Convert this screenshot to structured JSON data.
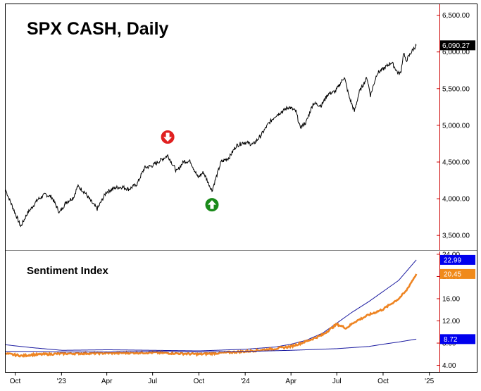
{
  "chart_data": [
    {
      "type": "line",
      "title": "SPX CASH, Daily",
      "y_axis_ticks": [
        "6,500.00",
        "6,000.00",
        "5,500.00",
        "5,000.00",
        "4,500.00",
        "4,000.00",
        "3,500.00"
      ],
      "ylim": [
        3300,
        6650
      ],
      "last_value_label": "6,090.27",
      "colors": {
        "line": "#000000",
        "axis": "#cc0000",
        "badge_bg": "#000000",
        "badge_text": "#ffffff"
      },
      "markers": [
        {
          "type": "sell",
          "icon": "arrow-down-icon",
          "color": "#e02020",
          "date": "2023-07-31",
          "value": 4620
        },
        {
          "type": "buy",
          "icon": "arrow-up-icon",
          "color": "#1a8a1a",
          "date": "2023-10-27",
          "value": 4110
        }
      ],
      "series": [
        {
          "x": [
            "2022-09-12",
            "2022-09-22",
            "2022-09-30",
            "2022-10-12",
            "2022-10-25",
            "2022-11-01",
            "2022-11-15",
            "2022-11-30",
            "2022-12-13",
            "2022-12-28",
            "2023-01-10",
            "2023-01-25",
            "2023-02-02",
            "2023-02-16",
            "2023-03-01",
            "2023-03-13",
            "2023-03-31",
            "2023-04-18",
            "2023-05-01",
            "2023-05-15",
            "2023-05-31",
            "2023-06-15",
            "2023-06-30",
            "2023-07-14",
            "2023-07-31",
            "2023-08-18",
            "2023-09-01",
            "2023-09-14",
            "2023-09-29",
            "2023-10-10",
            "2023-10-27",
            "2023-11-14",
            "2023-11-30",
            "2023-12-14",
            "2023-12-29",
            "2024-01-17",
            "2024-01-31",
            "2024-02-15",
            "2024-03-01",
            "2024-03-28",
            "2024-04-11",
            "2024-04-19",
            "2024-05-01",
            "2024-05-15",
            "2024-05-31",
            "2024-06-14",
            "2024-06-28",
            "2024-07-16",
            "2024-07-25",
            "2024-08-05",
            "2024-08-15",
            "2024-08-30",
            "2024-09-06",
            "2024-09-19",
            "2024-09-30",
            "2024-10-18",
            "2024-10-31",
            "2024-11-05",
            "2024-11-11",
            "2024-11-15",
            "2024-11-29",
            "2024-12-06"
          ],
          "y": [
            4120,
            3950,
            3820,
            3620,
            3800,
            3860,
            3990,
            4060,
            4020,
            3810,
            3950,
            4020,
            4170,
            4090,
            3960,
            3860,
            4090,
            4150,
            4160,
            4130,
            4200,
            4420,
            4450,
            4510,
            4590,
            4370,
            4510,
            4510,
            4290,
            4360,
            4110,
            4500,
            4560,
            4720,
            4770,
            4740,
            4850,
            5010,
            5130,
            5250,
            5190,
            4970,
            5040,
            5300,
            5270,
            5430,
            5460,
            5660,
            5400,
            5190,
            5460,
            5650,
            5410,
            5710,
            5760,
            5860,
            5710,
            5710,
            6000,
            5870,
            6030,
            6090
          ]
        }
      ]
    },
    {
      "type": "line",
      "title": "Sentiment Index",
      "y_axis_ticks": [
        "24.00",
        "20.00",
        "16.00",
        "12.00",
        "8.00",
        "4.00"
      ],
      "ylim": [
        2.8,
        24.5
      ],
      "x_tick_labels": [
        "Oct",
        "'23",
        "Apr",
        "Jul",
        "Oct",
        "'24",
        "Apr",
        "Jul",
        "Oct",
        "'25"
      ],
      "x_tick_dates": [
        "2022-10-01",
        "2023-01-01",
        "2023-04-01",
        "2023-07-01",
        "2023-10-01",
        "2024-01-01",
        "2024-04-01",
        "2024-07-01",
        "2024-10-01",
        "2025-01-01"
      ],
      "value_labels": [
        {
          "text": "22.99",
          "value": 22.99,
          "color": "#0000ee"
        },
        {
          "text": "20.45",
          "value": 20.45,
          "color": "#f08a1a"
        },
        {
          "text": "8.72",
          "value": 8.72,
          "color": "#0000ee"
        }
      ],
      "series": [
        {
          "color": "#1a1aa0",
          "x": [
            "2022-09-12",
            "2022-11-01",
            "2023-01-02",
            "2023-04-03",
            "2023-07-03",
            "2023-10-02",
            "2024-01-02",
            "2024-03-01",
            "2024-04-01",
            "2024-05-01",
            "2024-06-03",
            "2024-07-01",
            "2024-08-01",
            "2024-09-03",
            "2024-10-01",
            "2024-11-01",
            "2024-12-06"
          ],
          "y": [
            7.7,
            7.2,
            6.7,
            6.8,
            6.7,
            6.6,
            6.9,
            7.3,
            7.8,
            8.5,
            9.8,
            11.6,
            13.6,
            15.5,
            17.3,
            19.3,
            22.99
          ]
        },
        {
          "color": "#ee8422",
          "x": [
            "2022-09-12",
            "2022-10-15",
            "2022-11-01",
            "2023-01-02",
            "2023-04-03",
            "2023-07-03",
            "2023-10-02",
            "2024-01-02",
            "2024-03-01",
            "2024-04-01",
            "2024-05-01",
            "2024-06-03",
            "2024-07-01",
            "2024-07-20",
            "2024-08-05",
            "2024-09-03",
            "2024-10-01",
            "2024-11-01",
            "2024-11-15",
            "2024-12-06"
          ],
          "y": [
            6.1,
            5.7,
            5.9,
            6.1,
            6.2,
            6.3,
            6.0,
            6.5,
            7.0,
            7.4,
            8.3,
            9.5,
            11.4,
            10.7,
            11.8,
            13.1,
            14.1,
            16.0,
            17.3,
            20.45
          ]
        },
        {
          "color": "#1a1aa0",
          "x": [
            "2022-09-12",
            "2022-11-01",
            "2023-01-02",
            "2023-04-03",
            "2023-07-03",
            "2023-10-02",
            "2024-01-02",
            "2024-04-01",
            "2024-07-01",
            "2024-09-03",
            "2024-10-01",
            "2024-11-01",
            "2024-12-06"
          ],
          "y": [
            6.5,
            6.5,
            6.4,
            6.4,
            6.5,
            6.4,
            6.5,
            6.7,
            7.0,
            7.4,
            7.8,
            8.2,
            8.72
          ]
        }
      ]
    }
  ]
}
